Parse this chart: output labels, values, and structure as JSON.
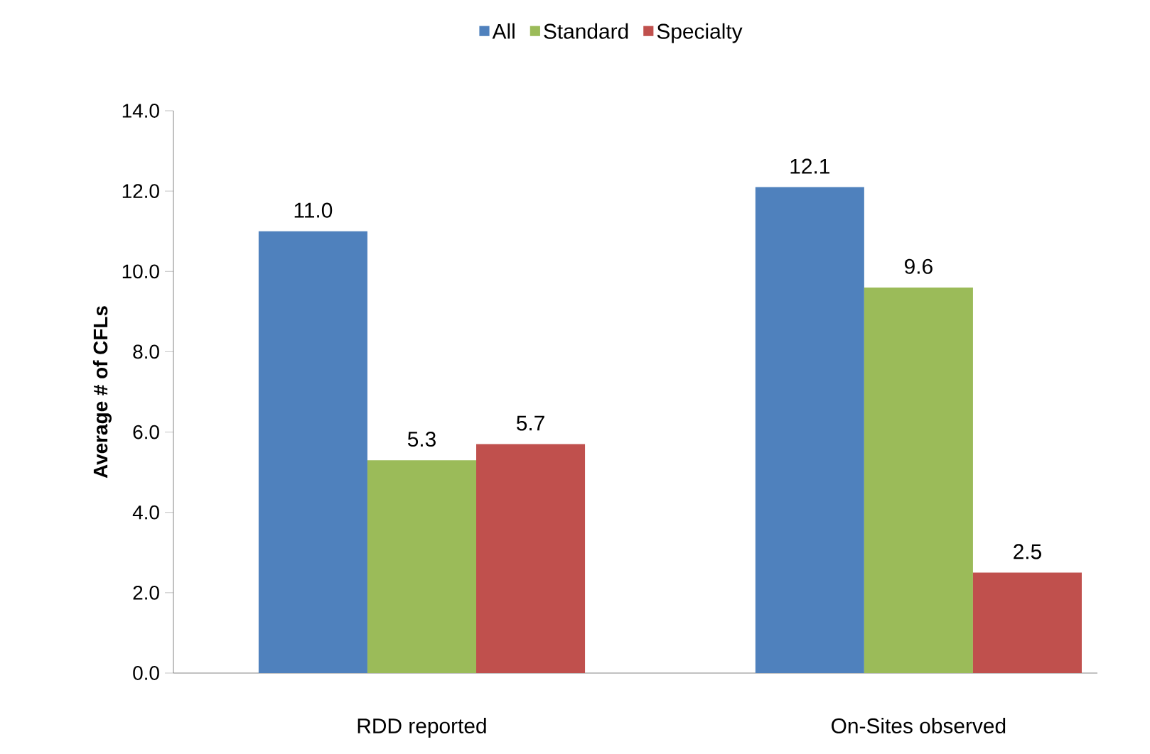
{
  "chart_data": {
    "type": "bar",
    "ylabel": "Average # of CFLs",
    "categories": [
      "RDD reported",
      "On-Sites observed"
    ],
    "series": [
      {
        "name": "All",
        "color": "#4f81bd",
        "values": [
          11.0,
          12.1
        ],
        "value_labels": [
          "11.0",
          "12.1"
        ]
      },
      {
        "name": "Standard",
        "color": "#9bbb59",
        "values": [
          5.3,
          9.6
        ],
        "value_labels": [
          "5.3",
          "9.6"
        ]
      },
      {
        "name": "Specialty",
        "color": "#c0504d",
        "values": [
          5.7,
          2.5
        ],
        "value_labels": [
          "5.7",
          "2.5"
        ]
      }
    ],
    "ylim": [
      0,
      14
    ],
    "yticks": [
      {
        "value": 0,
        "label": "0.0"
      },
      {
        "value": 2,
        "label": "2.0"
      },
      {
        "value": 4,
        "label": "4.0"
      },
      {
        "value": 6,
        "label": "6.0"
      },
      {
        "value": 8,
        "label": "8.0"
      },
      {
        "value": 10,
        "label": "10.0"
      },
      {
        "value": 12,
        "label": "12.0"
      },
      {
        "value": 14,
        "label": "14.0"
      }
    ],
    "legend": "top"
  }
}
